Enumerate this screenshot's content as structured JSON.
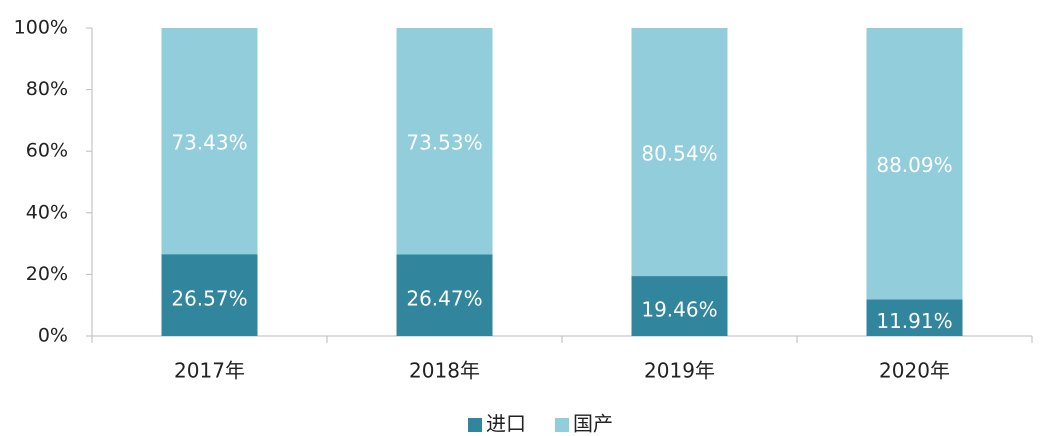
{
  "chart_data": {
    "type": "stacked_bar",
    "categories": [
      "2017年",
      "2018年",
      "2019年",
      "2020年"
    ],
    "series": [
      {
        "name": "进口",
        "color": "#31859c",
        "values": [
          26.57,
          26.47,
          19.46,
          11.91
        ],
        "value_labels": [
          "26.57%",
          "26.47%",
          "19.46%",
          "11.91%"
        ]
      },
      {
        "name": "国产",
        "color": "#92cddc",
        "values": [
          73.43,
          73.53,
          80.54,
          88.09
        ],
        "value_labels": [
          "73.43%",
          "73.53%",
          "80.54%",
          "88.09%"
        ]
      }
    ],
    "ylim": [
      0,
      100
    ],
    "yticks": [
      {
        "value": 0,
        "label": "0%"
      },
      {
        "value": 20,
        "label": "20%"
      },
      {
        "value": 40,
        "label": "40%"
      },
      {
        "value": 60,
        "label": "60%"
      },
      {
        "value": 80,
        "label": "80%"
      },
      {
        "value": 100,
        "label": "100%"
      }
    ],
    "legend": "bottom",
    "grid": false
  }
}
